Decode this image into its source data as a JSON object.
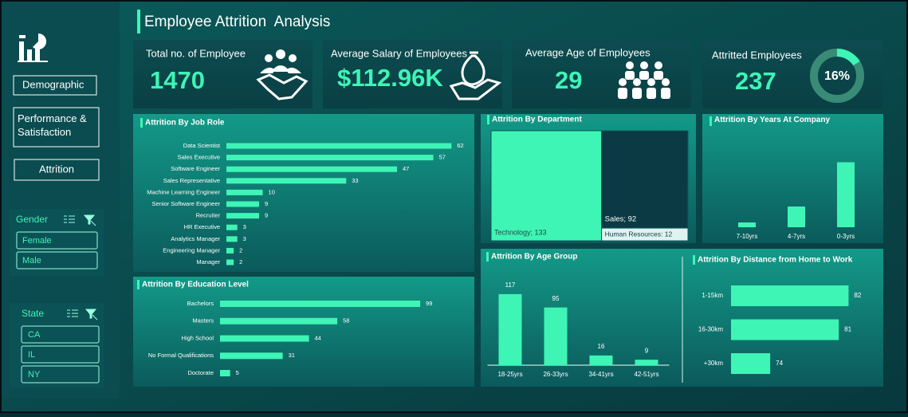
{
  "header": {
    "title": "Employee Attrition  Analysis"
  },
  "sidebar": {
    "nav": [
      "Demographic",
      "Performance & Satisfaction",
      "Attrition"
    ],
    "filters": [
      {
        "title": "Gender",
        "items": [
          "Female",
          "Male"
        ]
      },
      {
        "title": "State",
        "items": [
          "CA",
          "IL",
          "NY"
        ]
      }
    ]
  },
  "kpis": [
    {
      "title": "Total no. of Employee",
      "value": 1470
    },
    {
      "title": "Average Salary of Employees",
      "value": "$112.96K"
    },
    {
      "title": "Average Age of Employees",
      "value": 29
    },
    {
      "title": "Attritted Employees",
      "value": 237,
      "percent": 16,
      "percent_label": "16%"
    }
  ],
  "chart_data": [
    {
      "type": "bar",
      "orientation": "horizontal",
      "title": "Attrition By Job Role",
      "categories": [
        "Data Scientist",
        "Sales Executive",
        "Software Engineer",
        "Sales Representative",
        "Machine Learning Engineer",
        "Senior Software Engineer",
        "Recruiter",
        "HR Executive",
        "Analytics Manager",
        "Engineering Manager",
        "Manager"
      ],
      "values": [
        62,
        57,
        47,
        33,
        10,
        9,
        9,
        3,
        3,
        2,
        2
      ],
      "color": "#3ef5b5",
      "xlim": [
        0,
        65
      ],
      "data_labels": true
    },
    {
      "type": "treemap",
      "title": "Attrition By Department",
      "values": [
        133,
        92,
        12
      ],
      "value_labels": [
        "Technology; 133",
        "Sales; 92",
        "Human Resources: 12"
      ],
      "colors": [
        "#3ef5b5",
        "#0b3a44",
        "#dff3f1"
      ]
    },
    {
      "type": "bar",
      "orientation": "vertical",
      "title": "Attrition By Years At Company",
      "categories": [
        "7-10yrs",
        "4-7yrs",
        "0-3yrs"
      ],
      "values": [
        12,
        52,
        163
      ],
      "color": "#3ef5b5",
      "ylim": [
        0,
        200
      ],
      "data_labels": false
    },
    {
      "type": "bar",
      "orientation": "vertical",
      "title": "Attrition By Age Group",
      "categories": [
        "18-25yrs",
        "26-33yrs",
        "34-41yrs",
        "42-51yrs"
      ],
      "values": [
        117,
        95,
        16,
        9
      ],
      "color": "#3ef5b5",
      "ylim": [
        0,
        130
      ],
      "data_labels": true
    },
    {
      "type": "bar",
      "orientation": "horizontal",
      "title": "Attrition By Distance from Home to Work",
      "categories": [
        "1-15km",
        "16-30km",
        "+30km"
      ],
      "values": [
        82,
        81,
        74
      ],
      "color": "#3ef5b5",
      "xlim": [
        70,
        84
      ],
      "data_labels": true
    },
    {
      "type": "bar",
      "orientation": "horizontal",
      "title": "Attrition By Education Level",
      "categories": [
        "Bachelors",
        "Masters",
        "High School",
        "No Formal Qualifications",
        "Doctorate"
      ],
      "values": [
        99,
        58,
        44,
        31,
        5
      ],
      "color": "#3ef5b5",
      "xlim": [
        0,
        110
      ],
      "data_labels": true
    }
  ]
}
